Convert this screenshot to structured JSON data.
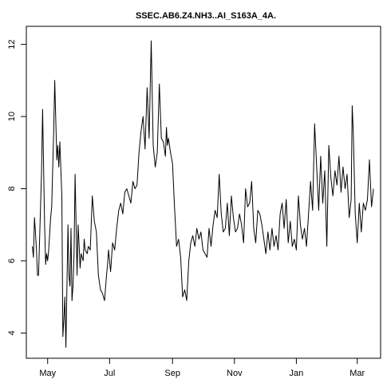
{
  "chart_data": {
    "type": "line",
    "title": "SSEC.AB6.Z4.NH3..AI_S163A_4A.",
    "xlabel": "",
    "ylabel": "",
    "ylim": [
      3.3,
      12.5
    ],
    "xlim": [
      "2019-04-10",
      "2020-03-24"
    ],
    "x_ticks": [
      {
        "label": "May",
        "date": "2019-05-01"
      },
      {
        "label": "Jul",
        "date": "2019-07-01"
      },
      {
        "label": "Sep",
        "date": "2019-09-01"
      },
      {
        "label": "Nov",
        "date": "2019-11-01"
      },
      {
        "label": "Jan",
        "date": "2020-01-01"
      },
      {
        "label": "Mar",
        "date": "2020-03-01"
      }
    ],
    "y_ticks": [
      4,
      6,
      8,
      10,
      12
    ],
    "grid": false,
    "color": "#000000",
    "series": [
      {
        "x": [
          "2019-04-16",
          "2019-04-17",
          "2019-04-18",
          "2019-04-19",
          "2019-04-20",
          "2019-04-21",
          "2019-04-22",
          "2019-04-23",
          "2019-04-25",
          "2019-04-26",
          "2019-04-28",
          "2019-04-29",
          "2019-04-30",
          "2019-05-01",
          "2019-05-02",
          "2019-05-04",
          "2019-05-05",
          "2019-05-07",
          "2019-05-08",
          "2019-05-10",
          "2019-05-11",
          "2019-05-12",
          "2019-05-13",
          "2019-05-15",
          "2019-05-16",
          "2019-05-17",
          "2019-05-18",
          "2019-05-19",
          "2019-05-21",
          "2019-05-22",
          "2019-05-23",
          "2019-05-24",
          "2019-05-25",
          "2019-05-26",
          "2019-05-27",
          "2019-05-28",
          "2019-05-30",
          "2019-05-31",
          "2019-06-01",
          "2019-06-02",
          "2019-06-03",
          "2019-06-05",
          "2019-06-06",
          "2019-06-07",
          "2019-06-09",
          "2019-06-10",
          "2019-06-12",
          "2019-06-14",
          "2019-06-16",
          "2019-06-18",
          "2019-06-20",
          "2019-06-22",
          "2019-06-24",
          "2019-06-26",
          "2019-06-28",
          "2019-06-29",
          "2019-06-30",
          "2019-07-02",
          "2019-07-04",
          "2019-07-06",
          "2019-07-08",
          "2019-07-10",
          "2019-07-12",
          "2019-07-14",
          "2019-07-16",
          "2019-07-18",
          "2019-07-20",
          "2019-07-22",
          "2019-07-24",
          "2019-07-26",
          "2019-07-28",
          "2019-07-30",
          "2019-08-01",
          "2019-08-03",
          "2019-08-05",
          "2019-08-07",
          "2019-08-09",
          "2019-08-11",
          "2019-08-13",
          "2019-08-15",
          "2019-08-17",
          "2019-08-19",
          "2019-08-21",
          "2019-08-23",
          "2019-08-25",
          "2019-08-26",
          "2019-08-27",
          "2019-08-28",
          "2019-08-30",
          "2019-09-01",
          "2019-09-03",
          "2019-09-05",
          "2019-09-07",
          "2019-09-09",
          "2019-09-11",
          "2019-09-13",
          "2019-09-15",
          "2019-09-17",
          "2019-09-19",
          "2019-09-21",
          "2019-09-23",
          "2019-09-25",
          "2019-09-27",
          "2019-09-29",
          "2019-10-01",
          "2019-10-03",
          "2019-10-05",
          "2019-10-07",
          "2019-10-09",
          "2019-10-11",
          "2019-10-13",
          "2019-10-15",
          "2019-10-17",
          "2019-10-19",
          "2019-10-21",
          "2019-10-23",
          "2019-10-25",
          "2019-10-27",
          "2019-10-29",
          "2019-10-31",
          "2019-11-02",
          "2019-11-04",
          "2019-11-06",
          "2019-11-08",
          "2019-11-10",
          "2019-11-12",
          "2019-11-14",
          "2019-11-16",
          "2019-11-18",
          "2019-11-20",
          "2019-11-22",
          "2019-11-24",
          "2019-11-26",
          "2019-11-28",
          "2019-11-30",
          "2019-12-02",
          "2019-12-04",
          "2019-12-06",
          "2019-12-08",
          "2019-12-10",
          "2019-12-12",
          "2019-12-14",
          "2019-12-16",
          "2019-12-18",
          "2019-12-20",
          "2019-12-22",
          "2019-12-24",
          "2019-12-26",
          "2019-12-28",
          "2019-12-30",
          "2020-01-01",
          "2020-01-03",
          "2020-01-05",
          "2020-01-07",
          "2020-01-09",
          "2020-01-11",
          "2020-01-13",
          "2020-01-15",
          "2020-01-17",
          "2020-01-19",
          "2020-01-21",
          "2020-01-23",
          "2020-01-25",
          "2020-01-27",
          "2020-01-29",
          "2020-01-31",
          "2020-02-02",
          "2020-02-04",
          "2020-02-06",
          "2020-02-08",
          "2020-02-10",
          "2020-02-12",
          "2020-02-14",
          "2020-02-16",
          "2020-02-18",
          "2020-02-20",
          "2020-02-22",
          "2020-02-24",
          "2020-02-25",
          "2020-02-26",
          "2020-02-27",
          "2020-02-28",
          "2020-03-01",
          "2020-03-03",
          "2020-03-05",
          "2020-03-07",
          "2020-03-09",
          "2020-03-11",
          "2020-03-13",
          "2020-03-15",
          "2020-03-17"
        ],
        "y": [
          6.4,
          6.1,
          7.2,
          6.8,
          6.3,
          5.6,
          5.6,
          6.5,
          8.5,
          10.2,
          7.0,
          5.9,
          6.2,
          6.0,
          6.3,
          7.2,
          7.5,
          9.6,
          11.0,
          8.8,
          9.2,
          8.6,
          9.3,
          7.8,
          3.9,
          4.4,
          5.0,
          3.6,
          7.0,
          5.6,
          5.3,
          6.9,
          4.9,
          5.3,
          6.2,
          8.4,
          5.6,
          7.0,
          6.4,
          5.8,
          6.2,
          6.0,
          6.6,
          6.3,
          6.2,
          6.4,
          6.3,
          7.8,
          7.1,
          6.8,
          5.6,
          5.2,
          5.1,
          4.9,
          5.6,
          5.9,
          6.3,
          5.7,
          6.5,
          6.3,
          6.9,
          7.4,
          7.6,
          7.3,
          7.9,
          8.0,
          7.8,
          7.6,
          8.2,
          8.0,
          8.1,
          9.0,
          9.6,
          10.0,
          9.1,
          10.8,
          9.4,
          12.1,
          9.2,
          8.6,
          9.0,
          10.9,
          9.4,
          9.3,
          8.9,
          9.7,
          9.2,
          9.4,
          9.0,
          8.7,
          7.5,
          6.4,
          6.6,
          6.1,
          5.0,
          5.2,
          4.9,
          6.0,
          6.5,
          6.7,
          6.4,
          6.9,
          6.6,
          6.8,
          6.3,
          6.2,
          6.1,
          6.9,
          6.4,
          7.0,
          7.4,
          7.2,
          8.4,
          7.3,
          6.8,
          6.9,
          7.6,
          6.7,
          7.8,
          7.2,
          6.8,
          6.9,
          7.3,
          7.0,
          6.5,
          8.0,
          7.5,
          7.6,
          8.2,
          6.9,
          6.5,
          7.4,
          7.3,
          7.0,
          6.6,
          6.2,
          6.8,
          6.3,
          6.9,
          6.4,
          6.7,
          6.3,
          7.3,
          7.6,
          6.9,
          7.7,
          6.5,
          7.1,
          6.4,
          6.6,
          6.3,
          7.8,
          7.0,
          6.6,
          6.9,
          6.4,
          7.3,
          8.2,
          7.4,
          9.8,
          8.6,
          7.4,
          8.9,
          7.6,
          8.5,
          6.4,
          9.2,
          8.3,
          7.8,
          8.5,
          8.1,
          8.9,
          7.9,
          8.6,
          8.0,
          8.4,
          7.2,
          7.7,
          10.3,
          9.6,
          8.5,
          7.3,
          6.5,
          7.6,
          6.8,
          7.6,
          7.4,
          7.7,
          8.8,
          7.5,
          8.0
        ]
      }
    ]
  }
}
